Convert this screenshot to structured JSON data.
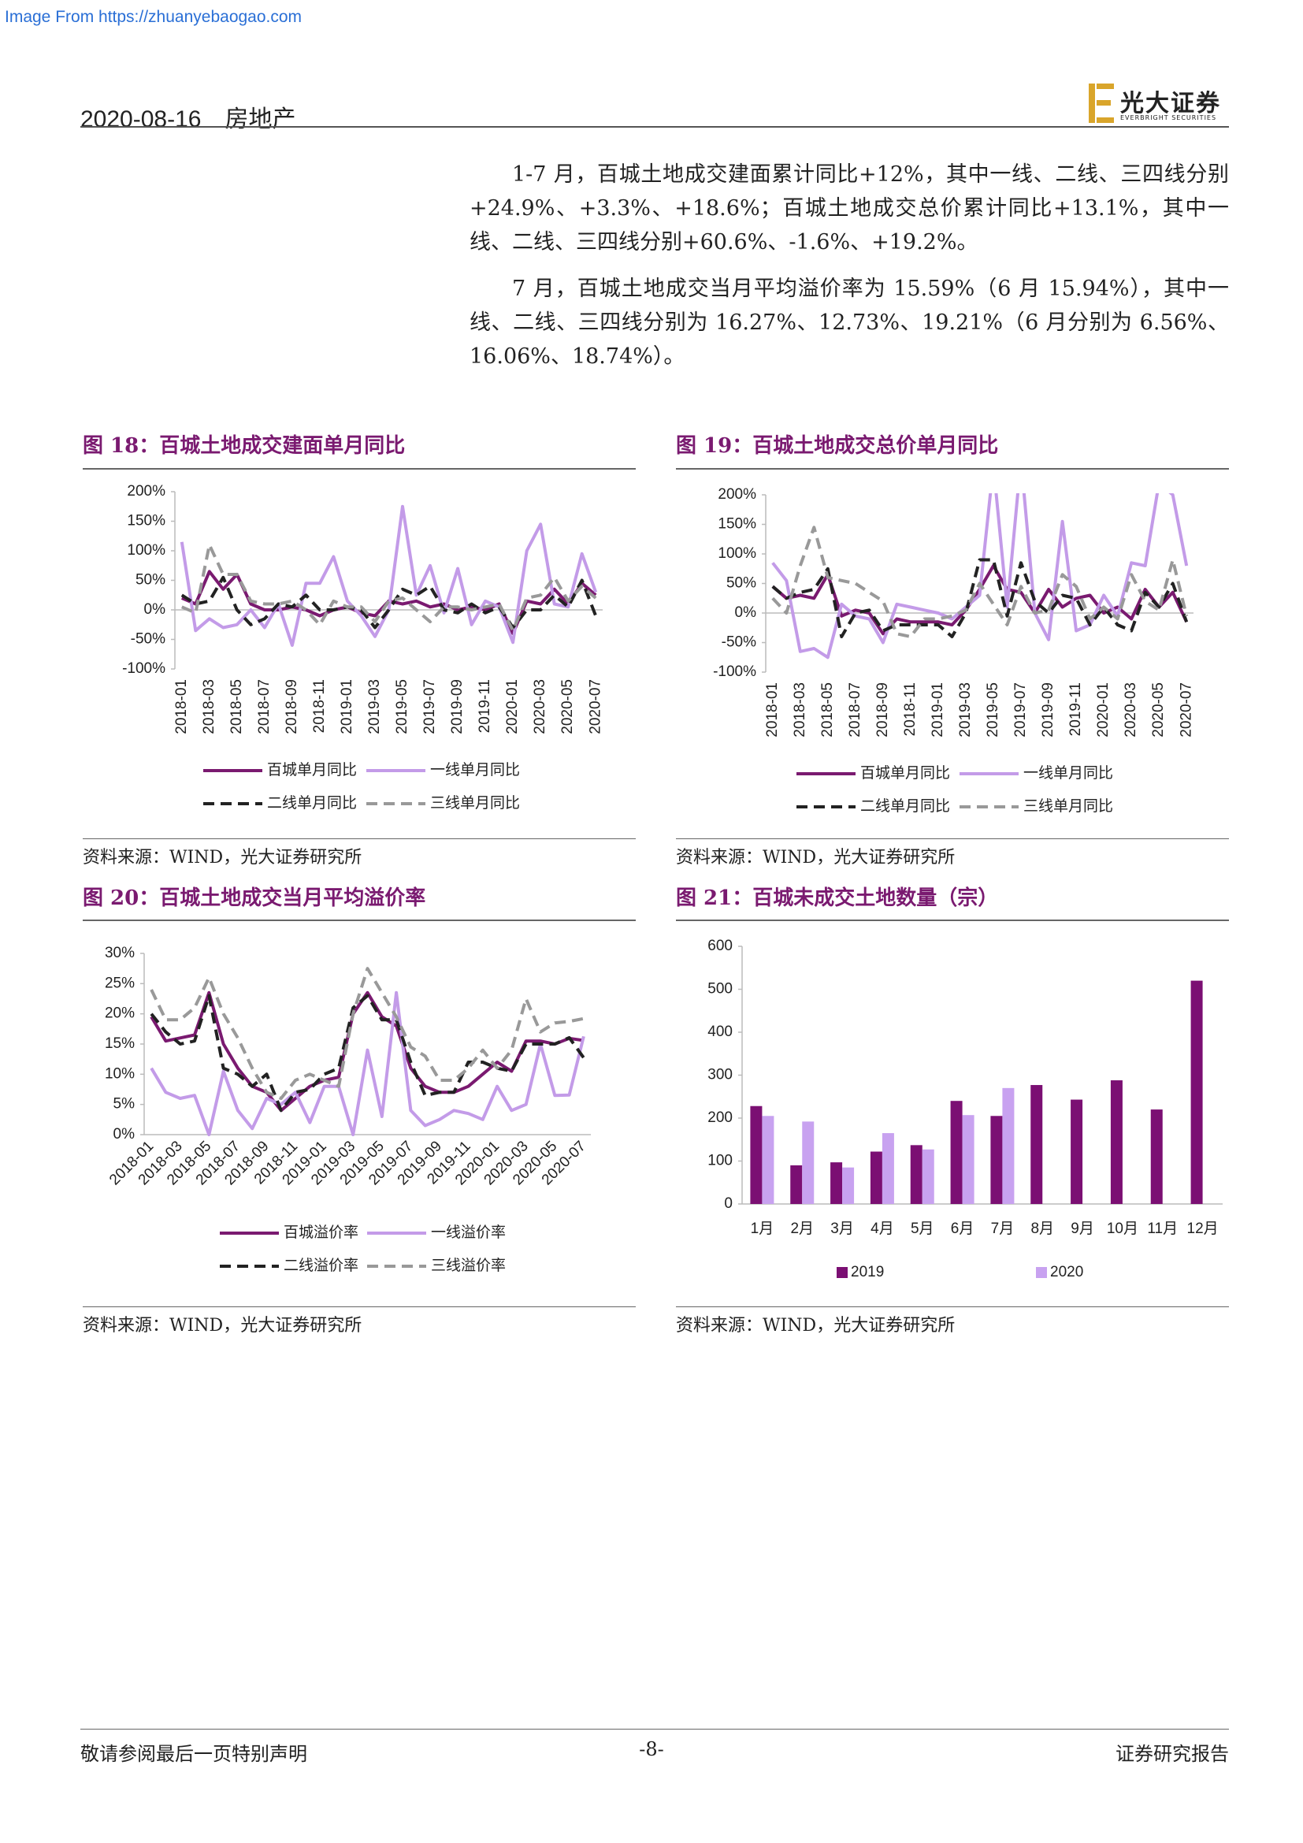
{
  "watermark": "Image From https://zhuanyebaogao.com",
  "header": {
    "date": "2020-08-16",
    "section": "房地产",
    "logo_cn": "光大证券",
    "logo_en": "EVERBRIGHT SECURITIES"
  },
  "paragraphs": [
    "1-7 月，百城土地成交建面累计同比+12%，其中一线、二线、三四线分别+24.9%、+3.3%、+18.6%；百城土地成交总价累计同比+13.1%，其中一线、二线、三四线分别+60.6%、-1.6%、+19.2%。",
    "7 月，百城土地成交当月平均溢价率为 15.59%（6 月 15.94%），其中一线、二线、三四线分别为 16.27%、12.73%、19.21%（6 月分别为 6.56%、16.06%、18.74%）。"
  ],
  "chart_data": [
    {
      "type": "line",
      "title": "图 18：百城土地成交建面单月同比",
      "source": "资料来源：WIND，光大证券研究所",
      "categories": [
        "2018-01",
        null,
        "2018-03",
        null,
        "2018-05",
        null,
        "2018-07",
        null,
        "2018-09",
        null,
        "2018-11",
        null,
        "2019-01",
        null,
        "2019-03",
        null,
        "2019-05",
        null,
        "2019-07",
        null,
        "2019-09",
        null,
        "2019-11",
        null,
        "2020-01",
        null,
        "2020-03",
        null,
        "2020-05",
        null,
        "2020-07"
      ],
      "ylim": [
        -100,
        200
      ],
      "yticks": [
        {
          "value": -100,
          "label": "-100%"
        },
        {
          "value": -50,
          "label": "-50%"
        },
        {
          "value": 0,
          "label": "0%"
        },
        {
          "value": 50,
          "label": "50%"
        },
        {
          "value": 100,
          "label": "100%"
        },
        {
          "value": 150,
          "label": "150%"
        },
        {
          "value": 200,
          "label": "200%"
        }
      ],
      "series": [
        {
          "name": "百城单月同比",
          "color": "#7a1a70",
          "dashed": false,
          "values": [
            20,
            10,
            65,
            35,
            60,
            10,
            0,
            0,
            5,
            0,
            -10,
            0,
            5,
            -5,
            -10,
            15,
            10,
            15,
            5,
            10,
            0,
            5,
            0,
            10,
            -40,
            15,
            10,
            35,
            10,
            45,
            25
          ]
        },
        {
          "name": "一线单月同比",
          "color": "#c39be8",
          "dashed": false,
          "values": [
            115,
            -35,
            -15,
            -30,
            -25,
            0,
            -30,
            10,
            -60,
            45,
            45,
            90,
            15,
            -10,
            -45,
            0,
            175,
            25,
            75,
            -5,
            70,
            -25,
            15,
            5,
            -55,
            100,
            145,
            10,
            5,
            95,
            30
          ]
        },
        {
          "name": "二线单月同比",
          "color": "#222222",
          "dashed": true,
          "values": [
            25,
            10,
            15,
            55,
            0,
            -25,
            -15,
            10,
            5,
            25,
            0,
            0,
            5,
            0,
            -30,
            0,
            35,
            25,
            40,
            0,
            -5,
            10,
            -5,
            5,
            -30,
            0,
            0,
            25,
            5,
            50,
            -10
          ]
        },
        {
          "name": "三线单月同比",
          "color": "#999999",
          "dashed": true,
          "values": [
            5,
            -5,
            110,
            60,
            60,
            15,
            10,
            10,
            15,
            0,
            -25,
            15,
            5,
            5,
            -20,
            15,
            20,
            0,
            -20,
            5,
            5,
            0,
            5,
            10,
            -35,
            20,
            25,
            55,
            15,
            40,
            20
          ]
        }
      ]
    },
    {
      "type": "line",
      "title": "图 19：百城土地成交总价单月同比",
      "source": "资料来源：WIND，光大证券研究所",
      "categories": [
        "2018-01",
        null,
        "2018-03",
        null,
        "2018-05",
        null,
        "2018-07",
        null,
        "2018-09",
        null,
        "2018-11",
        null,
        "2019-01",
        null,
        "2019-03",
        null,
        "2019-05",
        null,
        "2019-07",
        null,
        "2019-09",
        null,
        "2019-11",
        null,
        "2020-01",
        null,
        "2020-03",
        null,
        "2020-05",
        null,
        "2020-07"
      ],
      "ylim": [
        -100,
        200
      ],
      "yticks": [
        {
          "value": -100,
          "label": "-100%"
        },
        {
          "value": -50,
          "label": "-50%"
        },
        {
          "value": 0,
          "label": "0%"
        },
        {
          "value": 50,
          "label": "50%"
        },
        {
          "value": 100,
          "label": "100%"
        },
        {
          "value": 150,
          "label": "150%"
        },
        {
          "value": 200,
          "label": "200%"
        }
      ],
      "series": [
        {
          "name": "百城单月同比",
          "color": "#7a1a70",
          "dashed": false,
          "values": [
            45,
            25,
            30,
            25,
            65,
            -5,
            5,
            0,
            -35,
            -10,
            -15,
            -15,
            -15,
            -20,
            5,
            40,
            80,
            40,
            35,
            0,
            40,
            10,
            25,
            30,
            0,
            10,
            -10,
            40,
            10,
            35,
            -15
          ]
        },
        {
          "name": "一线单月同比",
          "color": "#c39be8",
          "dashed": false,
          "values": [
            85,
            55,
            -65,
            -60,
            -75,
            15,
            -5,
            -10,
            -50,
            15,
            10,
            5,
            0,
            -10,
            10,
            30,
            250,
            10,
            260,
            0,
            -45,
            155,
            -30,
            -20,
            30,
            -5,
            85,
            80,
            220,
            200,
            80
          ]
        },
        {
          "name": "二线单月同比",
          "color": "#222222",
          "dashed": true,
          "values": [
            45,
            25,
            35,
            40,
            75,
            -40,
            0,
            5,
            -30,
            -20,
            -20,
            -20,
            -20,
            -40,
            0,
            90,
            90,
            -5,
            85,
            20,
            0,
            30,
            25,
            -20,
            10,
            -20,
            -30,
            35,
            10,
            50,
            -15
          ]
        },
        {
          "name": "三线单月同比",
          "color": "#999999",
          "dashed": true,
          "values": [
            25,
            0,
            80,
            145,
            60,
            55,
            50,
            35,
            20,
            -35,
            -40,
            -10,
            -10,
            -5,
            5,
            50,
            15,
            -20,
            45,
            0,
            5,
            65,
            45,
            -10,
            10,
            -10,
            65,
            20,
            5,
            90,
            -5
          ]
        }
      ]
    },
    {
      "type": "line",
      "title": "图 20：百城土地成交当月平均溢价率",
      "source": "资料来源：WIND，光大证券研究所",
      "categories": [
        "2018-01",
        null,
        "2018-03",
        null,
        "2018-05",
        null,
        "2018-07",
        null,
        "2018-09",
        null,
        "2018-11",
        null,
        "2019-01",
        null,
        "2019-03",
        null,
        "2019-05",
        null,
        "2019-07",
        null,
        "2019-09",
        null,
        "2019-11",
        null,
        "2020-01",
        null,
        "2020-03",
        null,
        "2020-05",
        null,
        "2020-07"
      ],
      "ylim": [
        0,
        30
      ],
      "yticks": [
        {
          "value": 0,
          "label": "0%"
        },
        {
          "value": 5,
          "label": "5%"
        },
        {
          "value": 10,
          "label": "10%"
        },
        {
          "value": 15,
          "label": "15%"
        },
        {
          "value": 20,
          "label": "20%"
        },
        {
          "value": 25,
          "label": "25%"
        },
        {
          "value": 30,
          "label": "30%"
        }
      ],
      "series": [
        {
          "name": "百城溢价率",
          "color": "#7a1a70",
          "dashed": false,
          "values": [
            19.5,
            15.5,
            16,
            16.5,
            23.5,
            15,
            11,
            8,
            7,
            4,
            6,
            8,
            9,
            9.5,
            20,
            23.5,
            19.5,
            18,
            11,
            8,
            7,
            7,
            8,
            10,
            12,
            10.5,
            15.5,
            15.5,
            15,
            15.94,
            15.59
          ]
        },
        {
          "name": "一线溢价率",
          "color": "#c39be8",
          "dashed": false,
          "values": [
            11,
            7,
            6,
            6.5,
            0,
            10.5,
            4,
            1,
            6,
            5,
            7,
            2,
            8,
            8,
            0,
            14,
            3,
            23.5,
            4,
            1.5,
            2.5,
            4,
            3.5,
            2.5,
            8,
            4,
            5,
            15,
            6.5,
            6.56,
            16.27
          ]
        },
        {
          "name": "二线溢价率",
          "color": "#222222",
          "dashed": true,
          "values": [
            20,
            17,
            15,
            15.5,
            23,
            11,
            10,
            8,
            10,
            4,
            7,
            7.5,
            10,
            11,
            21,
            23,
            19,
            19,
            12,
            6.5,
            7,
            7,
            12,
            12,
            11,
            10.5,
            15,
            15,
            15,
            16.06,
            12.73
          ]
        },
        {
          "name": "三线溢价率",
          "color": "#999999",
          "dashed": true,
          "values": [
            24,
            19,
            19,
            21,
            26,
            20,
            16,
            11,
            7,
            6,
            9,
            10,
            9,
            8,
            20,
            27.5,
            23.5,
            19.5,
            14.5,
            13,
            9,
            9,
            11,
            14,
            11,
            14,
            22.5,
            17,
            18.5,
            18.74,
            19.21
          ]
        }
      ]
    },
    {
      "type": "bar",
      "title": "图 21：百城未成交土地数量（宗）",
      "source": "资料来源：WIND，光大证券研究所",
      "categories": [
        "1月",
        "2月",
        "3月",
        "4月",
        "5月",
        "6月",
        "7月",
        "8月",
        "9月",
        "10月",
        "11月",
        "12月"
      ],
      "ylim": [
        0,
        600
      ],
      "yticks": [
        0,
        100,
        200,
        300,
        400,
        500,
        600
      ],
      "series": [
        {
          "name": "2019",
          "color": "#7b0f73",
          "values": [
            228,
            90,
            97,
            122,
            137,
            240,
            205,
            277,
            243,
            288,
            220,
            520
          ]
        },
        {
          "name": "2020",
          "color": "#c8a2f0",
          "values": [
            205,
            192,
            85,
            165,
            127,
            207,
            270,
            null,
            null,
            null,
            null,
            null
          ]
        }
      ]
    }
  ],
  "footer": {
    "left": "敬请参阅最后一页特别声明",
    "center": "-8-",
    "right": "证券研究报告"
  }
}
